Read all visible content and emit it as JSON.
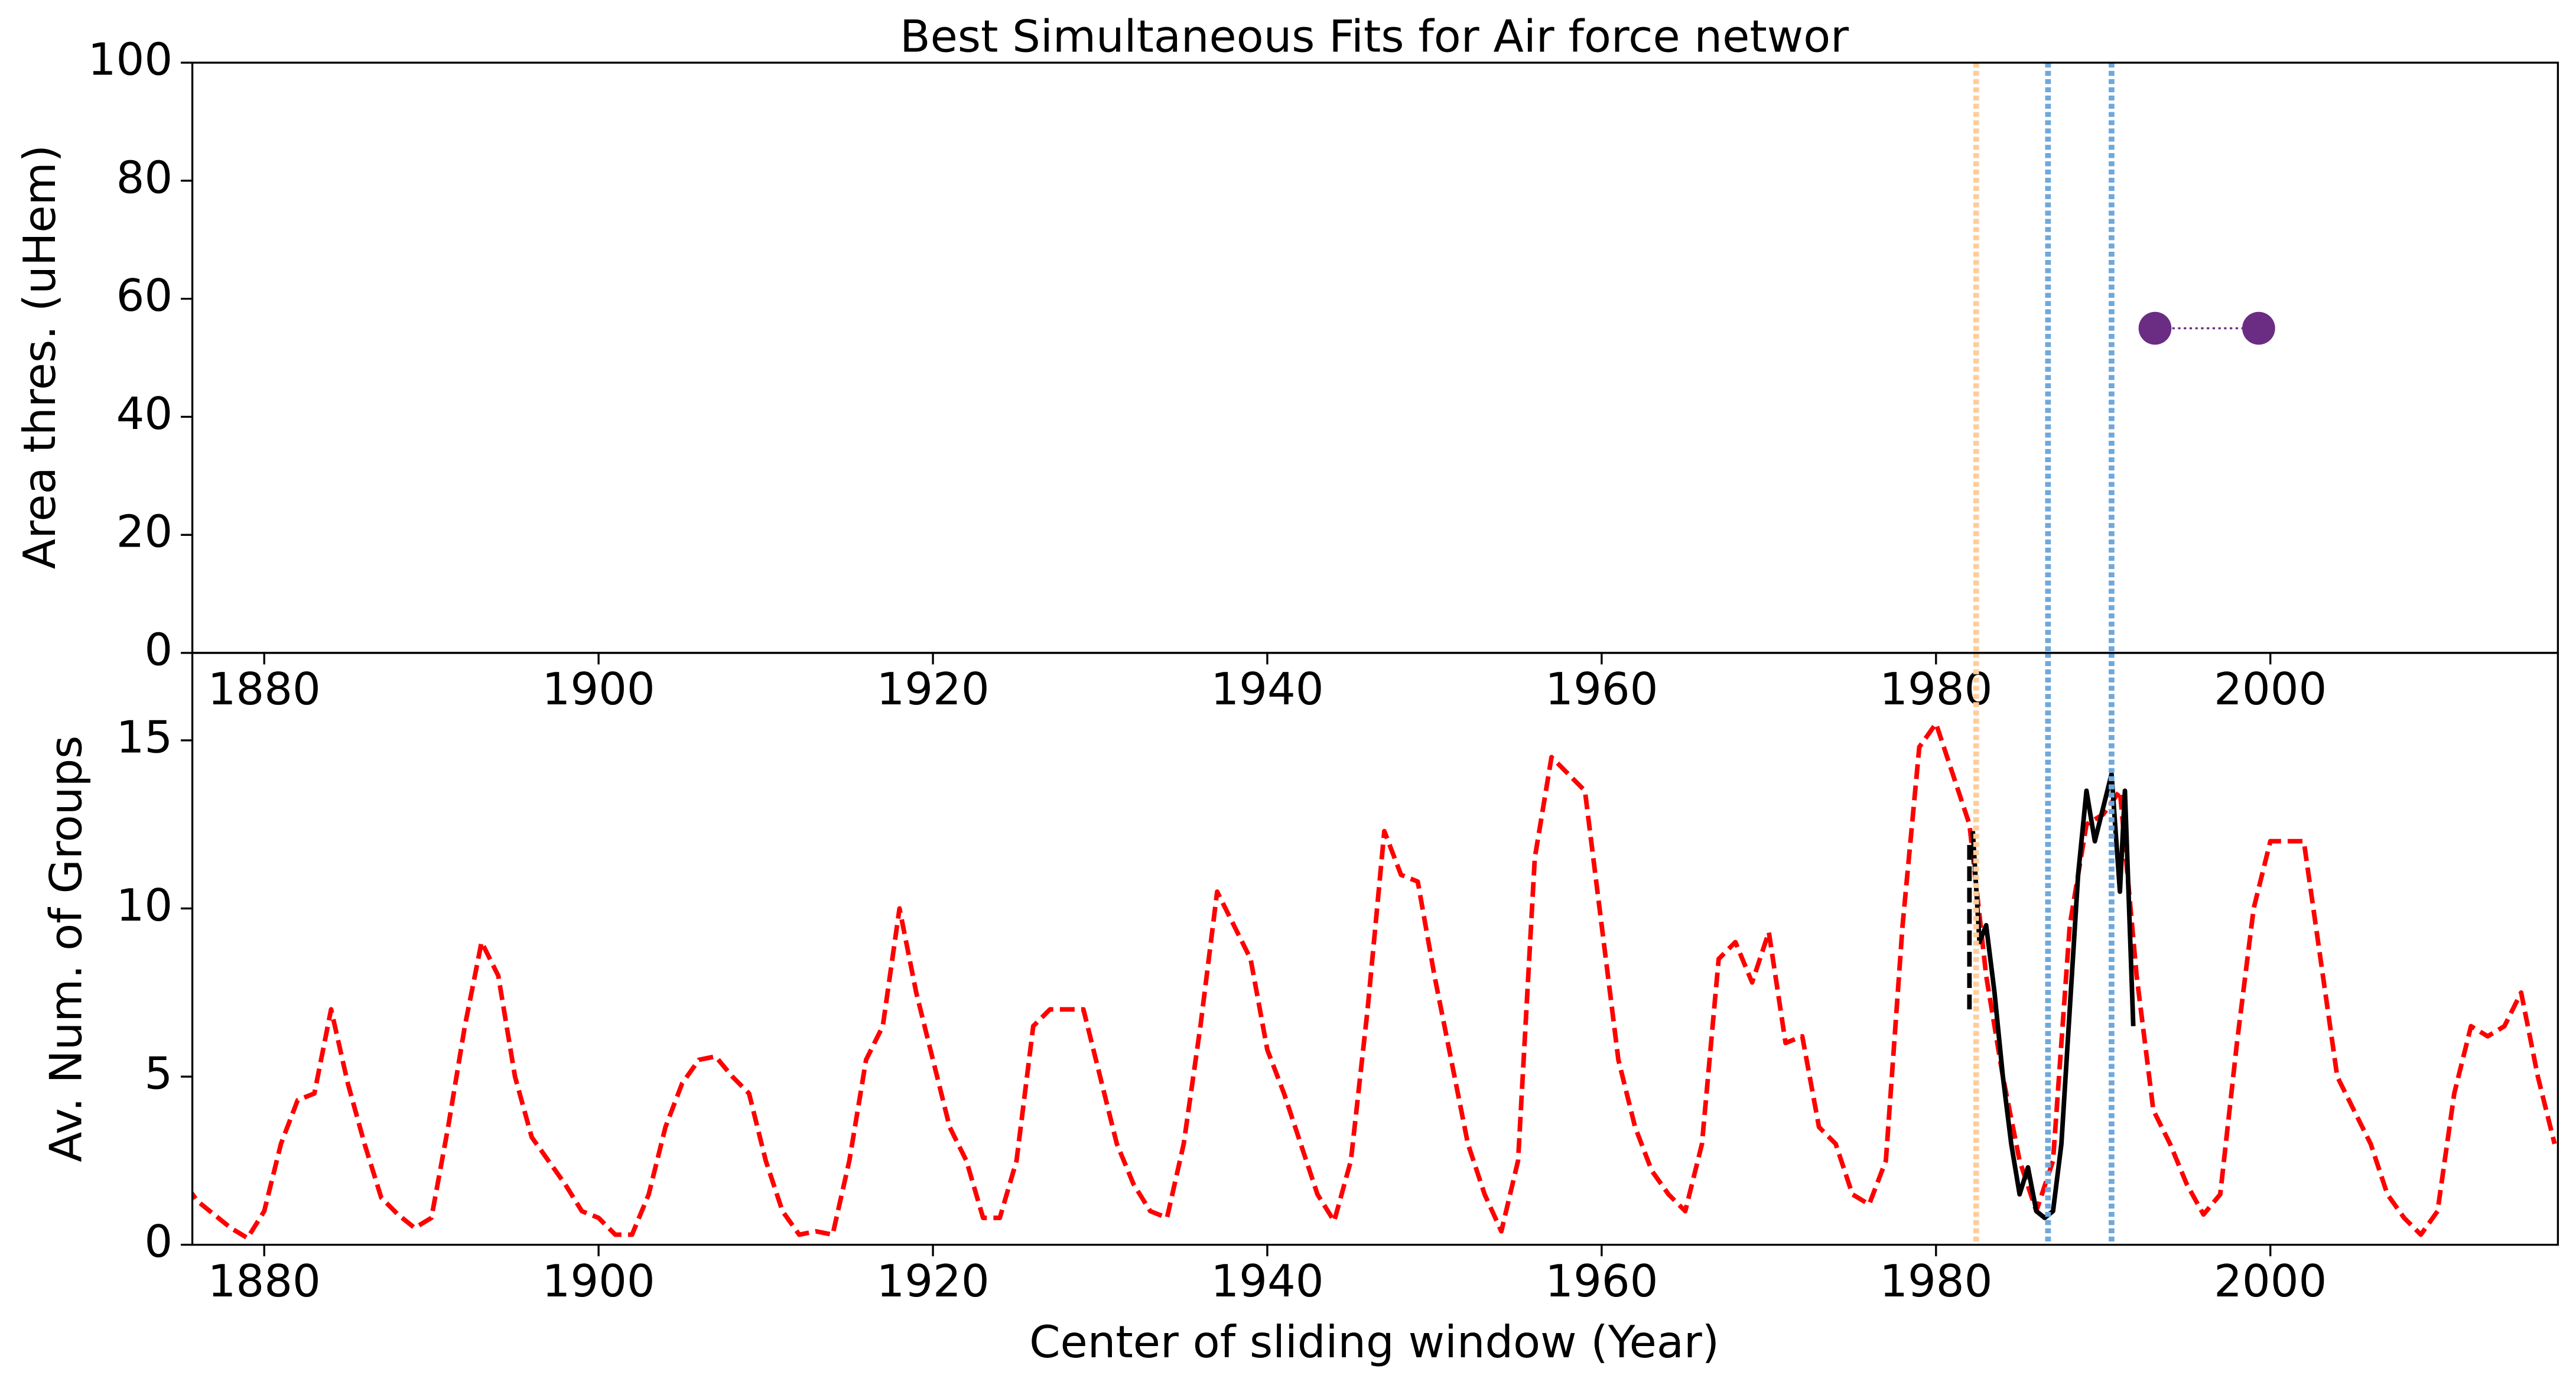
{
  "chart_data": [
    {
      "type": "scatter",
      "title": "Best Simultaneous Fits for Air force networ",
      "ylabel": "Area thres. (uHem)",
      "x": [
        1993.1,
        1999.3
      ],
      "values": [
        55,
        55
      ],
      "color": "#6a2d83",
      "xlim": [
        1875.7,
        2017.2
      ],
      "ylim": [
        0,
        100
      ],
      "xticks": [
        1880,
        1900,
        1920,
        1940,
        1960,
        1980,
        2000
      ],
      "yticks": [
        0,
        20,
        40,
        60,
        80,
        100
      ],
      "vlines": [
        {
          "x": 1982.4,
          "color": "#ffcc99"
        },
        {
          "x": 1986.7,
          "color": "#6ea8dc"
        },
        {
          "x": 1990.5,
          "color": "#6ea8dc"
        }
      ]
    },
    {
      "type": "line",
      "xlabel": "Center of sliding window (Year)",
      "ylabel": "Av. Num. of Groups",
      "xlim": [
        1875.7,
        2017.2
      ],
      "ylim": [
        0,
        17.6
      ],
      "xticks": [
        1880,
        1900,
        1920,
        1940,
        1960,
        1980,
        2000
      ],
      "yticks": [
        0,
        5,
        10,
        15
      ],
      "vlines": [
        {
          "x": 1982.4,
          "color": "#ffcc99"
        },
        {
          "x": 1986.7,
          "color": "#6ea8dc"
        },
        {
          "x": 1990.5,
          "color": "#6ea8dc"
        }
      ],
      "series": [
        {
          "color": "#ff0000",
          "dash": "dashed",
          "x": [
            1874,
            1875,
            1876,
            1877,
            1878,
            1879,
            1880,
            1881,
            1882,
            1883,
            1884,
            1885,
            1886,
            1887,
            1888,
            1889,
            1890,
            1891,
            1892,
            1893,
            1894,
            1895,
            1896,
            1897,
            1898,
            1899,
            1900,
            1901,
            1902,
            1903,
            1904,
            1905,
            1906,
            1907,
            1908,
            1909,
            1910,
            1911,
            1912,
            1913,
            1914,
            1915,
            1916,
            1917,
            1918,
            1919,
            1920,
            1921,
            1922,
            1923,
            1924,
            1925,
            1926,
            1927,
            1928,
            1929,
            1930,
            1931,
            1932,
            1933,
            1934,
            1935,
            1936,
            1937,
            1938,
            1939,
            1940,
            1941,
            1942,
            1943,
            1944,
            1945,
            1946,
            1947,
            1948,
            1949,
            1950,
            1951,
            1952,
            1953,
            1954,
            1955,
            1956,
            1957,
            1958,
            1959,
            1960,
            1961,
            1962,
            1963,
            1964,
            1965,
            1966,
            1967,
            1968,
            1969,
            1970,
            1971,
            1972,
            1973,
            1974,
            1975,
            1976,
            1977,
            1978,
            1979,
            1980,
            1981,
            1982,
            1983,
            1984,
            1985,
            1986,
            1987,
            1988,
            1989,
            1990,
            1991,
            1992,
            1993,
            1994,
            1995,
            1996,
            1997,
            1998,
            1999,
            2000,
            2001,
            2002,
            2003,
            2004,
            2005,
            2006,
            2007,
            2008,
            2009,
            2010,
            2011,
            2012,
            2013,
            2014,
            2015,
            2016,
            2017
          ],
          "values": [
            1.2,
            2.0,
            1.3,
            0.9,
            0.5,
            0.2,
            1.0,
            3.0,
            4.3,
            4.5,
            7.0,
            4.8,
            3.0,
            1.4,
            0.9,
            0.5,
            0.8,
            3.5,
            6.5,
            9.0,
            8.0,
            5.0,
            3.2,
            2.5,
            1.8,
            1.0,
            0.8,
            0.3,
            0.3,
            1.5,
            3.5,
            4.8,
            5.5,
            5.6,
            5.0,
            4.5,
            2.5,
            1.0,
            0.3,
            0.4,
            0.3,
            2.5,
            5.5,
            6.5,
            10.0,
            7.5,
            5.5,
            3.5,
            2.5,
            0.8,
            0.8,
            2.5,
            6.5,
            7.0,
            7.0,
            7.0,
            5.0,
            3.0,
            1.8,
            1.0,
            0.8,
            3.0,
            6.5,
            10.5,
            9.5,
            8.5,
            5.8,
            4.5,
            3.0,
            1.5,
            0.7,
            2.5,
            7.0,
            12.3,
            11.0,
            10.8,
            8.0,
            5.5,
            3.0,
            1.5,
            0.4,
            2.5,
            11.5,
            14.5,
            14.0,
            13.5,
            9.5,
            5.5,
            3.5,
            2.2,
            1.5,
            1.0,
            3.0,
            8.5,
            9.0,
            7.8,
            9.3,
            6.0,
            6.2,
            3.5,
            3.0,
            1.5,
            1.2,
            2.5,
            9.5,
            14.8,
            15.5,
            14.0,
            12.5,
            8.0,
            5.0,
            2.5,
            1.0,
            2.5,
            9.5,
            12.5,
            12.8,
            13.5,
            8.0,
            4.0,
            3.0,
            1.8,
            0.9,
            1.5,
            6.0,
            10.0,
            12.0,
            12.0,
            12.0,
            8.5,
            5.0,
            4.0,
            3.0,
            1.5,
            0.8,
            0.3,
            1.0,
            4.5,
            6.5,
            6.2,
            6.5,
            7.5,
            5.0,
            3.0
          ]
        },
        {
          "color": "#000000",
          "dash": "dashed",
          "x": [
            1982,
            1982
          ],
          "values": [
            7,
            12
          ]
        },
        {
          "color": "#000000",
          "dash": "solid",
          "x": [
            1982.2,
            1982.6,
            1983,
            1983.5,
            1984,
            1984.5,
            1985,
            1985.5,
            1986,
            1986.5,
            1987,
            1987.5,
            1988,
            1988.5,
            1989,
            1989.5,
            1990,
            1990.5,
            1991,
            1991.3,
            1991.8
          ],
          "values": [
            12.3,
            9.0,
            9.5,
            7.5,
            5.0,
            3.0,
            1.5,
            2.3,
            1.0,
            0.8,
            1.0,
            3.0,
            7.0,
            11.0,
            13.5,
            12.0,
            13.0,
            14.0,
            10.5,
            13.5,
            6.5
          ]
        }
      ]
    }
  ]
}
